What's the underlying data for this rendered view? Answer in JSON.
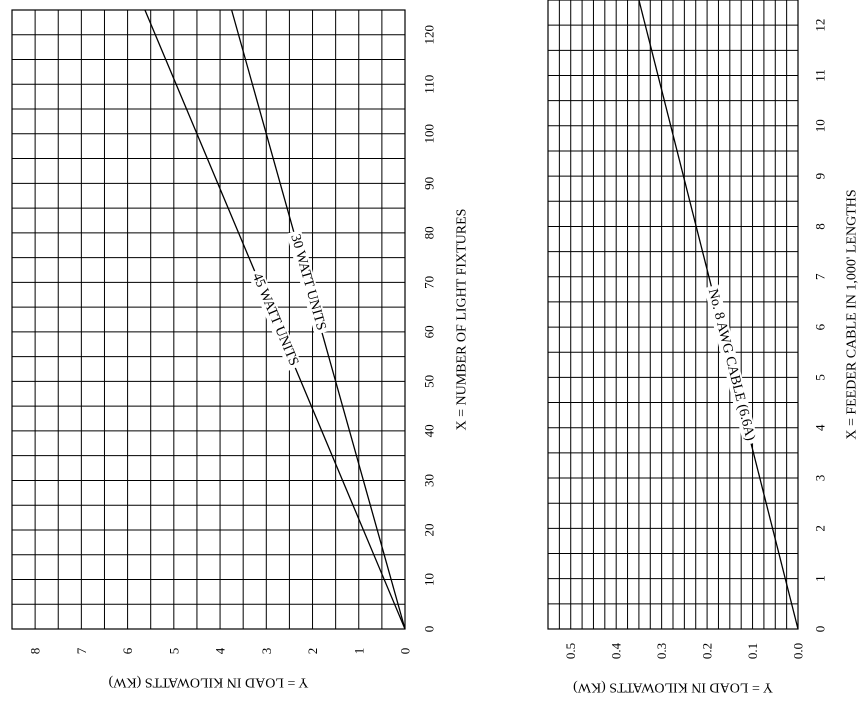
{
  "chart_data": [
    {
      "type": "line",
      "x_axis_label": "X = NUMBER OF LIGHT FIXTURES",
      "y_axis_label": "Y = LOAD IN KILOWATTS (KW)",
      "xlim": [
        0,
        125
      ],
      "ylim": [
        0,
        8.5
      ],
      "x_ticks": [
        "0",
        "10",
        "20",
        "30",
        "40",
        "50",
        "60",
        "70",
        "80",
        "90",
        "100",
        "110",
        "120"
      ],
      "y_ticks": [
        "0",
        "1",
        "2",
        "3",
        "4",
        "5",
        "6",
        "7",
        "8"
      ],
      "grid": true,
      "series": [
        {
          "name": "30 WATT UNITS",
          "x": [
            0,
            125
          ],
          "y": [
            0,
            3.75
          ]
        },
        {
          "name": "45 WATT UNITS",
          "x": [
            0,
            125
          ],
          "y": [
            0,
            5.625
          ]
        }
      ]
    },
    {
      "type": "line",
      "x_axis_label": "X = FEEDER CABLE IN 1,000' LENGTHS",
      "y_axis_label": "Y = LOAD IN KILOWATTS (KW)",
      "xlim": [
        0,
        12.5
      ],
      "ylim": [
        0,
        0.55
      ],
      "x_ticks": [
        "0",
        "1",
        "2",
        "3",
        "4",
        "5",
        "6",
        "7",
        "8",
        "9",
        "10",
        "11",
        "12"
      ],
      "y_ticks": [
        "0.0",
        "0.1",
        "0.2",
        "0.3",
        "0.4",
        "0.5"
      ],
      "grid": true,
      "series": [
        {
          "name": "No. 8 AWG CABLE (6.6A)",
          "x": [
            0,
            12.5
          ],
          "y": [
            0,
            0.35
          ]
        }
      ]
    }
  ]
}
